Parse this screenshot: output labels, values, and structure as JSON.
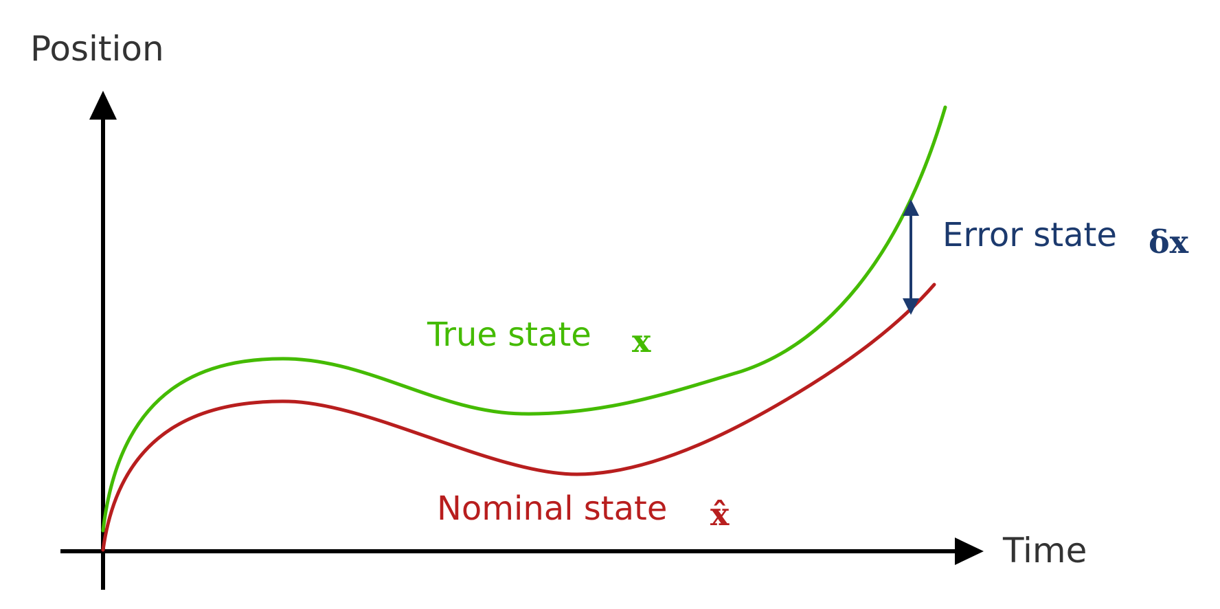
{
  "axes": {
    "y_label": "Position",
    "x_label": "Time"
  },
  "curves": {
    "true_state": {
      "label": "True state",
      "symbol": "x",
      "color": "#44bb00"
    },
    "nominal_state": {
      "label": "Nominal state",
      "symbol": "x̂",
      "color": "#b81e1e"
    }
  },
  "error": {
    "label": "Error state",
    "symbol": "δx",
    "color": "#1c3a6e"
  },
  "colors": {
    "axis": "#000000",
    "text_dark": "#333333"
  }
}
